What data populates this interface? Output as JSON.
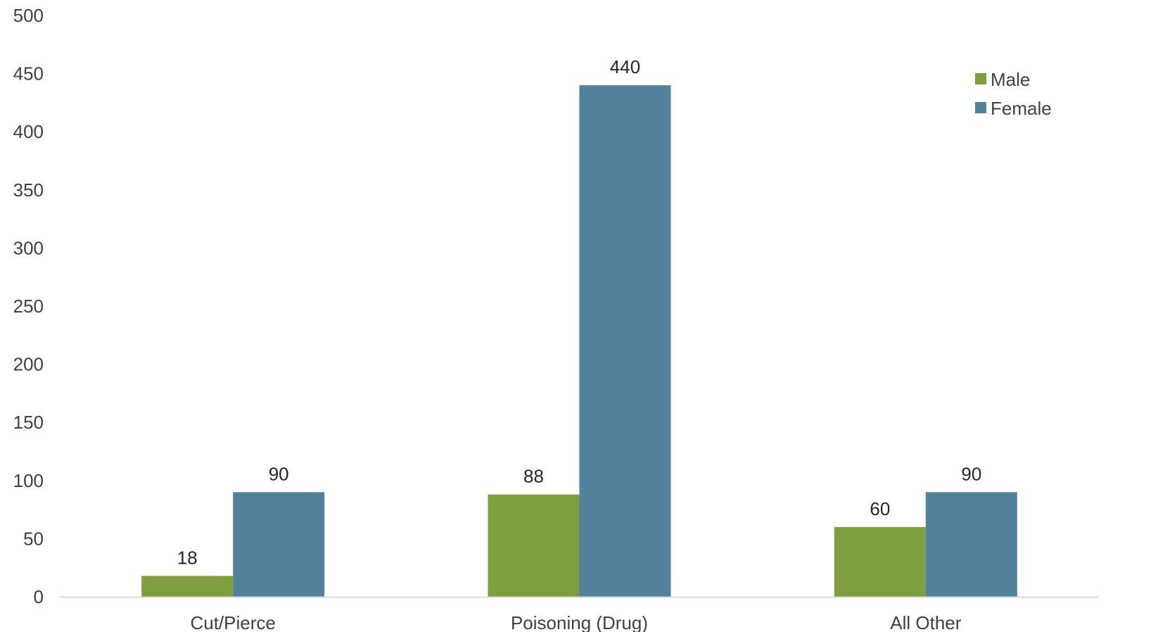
{
  "chart_data": {
    "type": "bar",
    "categories": [
      "Cut/Pierce",
      "Poisoning (Drug)",
      "All Other"
    ],
    "series": [
      {
        "name": "Male",
        "values": [
          18,
          88,
          60
        ],
        "color": "#7f9e3f"
      },
      {
        "name": "Female",
        "values": [
          90,
          440,
          90
        ],
        "color": "#52829b"
      }
    ],
    "yticks": [
      0,
      50,
      100,
      150,
      200,
      250,
      300,
      350,
      400,
      450,
      500
    ],
    "ylim": [
      0,
      500
    ],
    "data_labels": true,
    "grid": false,
    "legend_position": "top-right",
    "axis_color": "#d9d9d9"
  }
}
